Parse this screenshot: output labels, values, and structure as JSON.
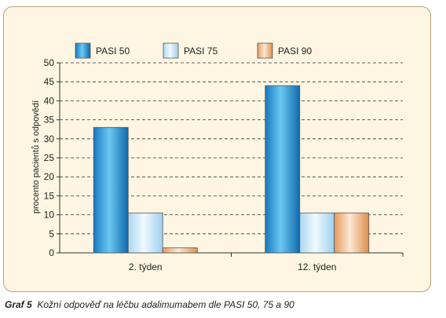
{
  "chart_data": {
    "type": "bar",
    "categories": [
      "2. týden",
      "12. týden"
    ],
    "series": [
      {
        "name": "PASI 50",
        "values": [
          33,
          44
        ],
        "color": "#33a3dd"
      },
      {
        "name": "PASI 75",
        "values": [
          10.5,
          10.5
        ],
        "color": "#bfe2f6"
      },
      {
        "name": "PASI 90",
        "values": [
          1.3,
          10.5
        ],
        "color": "#f3b98a"
      }
    ],
    "ylabel": "procento pacientů s odpovědí",
    "ylim": [
      0,
      50
    ],
    "yticks": [
      0,
      5,
      10,
      15,
      20,
      25,
      30,
      35,
      40,
      45,
      50
    ],
    "grid": "dashed horizontal",
    "legend_position": "top"
  },
  "caption": {
    "label": "Graf 5",
    "text": "Kožní odpověď na léčbu adalimumabem dle PASI 50, 75 a 90"
  }
}
